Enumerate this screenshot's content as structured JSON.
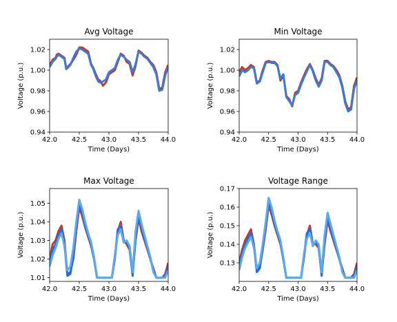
{
  "chart_data": [
    {
      "type": "line",
      "title": "Avg Voltage",
      "xlabel": "Time (Days)",
      "ylabel": "Voltage (p.u.)",
      "xlim": [
        42.0,
        44.0
      ],
      "ylim": [
        0.94,
        1.03
      ],
      "xticks": [
        42.0,
        42.5,
        43.0,
        43.5,
        44.0
      ],
      "xtick_labels": [
        "42.0",
        "42.5",
        "43.0",
        "43.5",
        "44.0"
      ],
      "yticks": [
        0.94,
        0.96,
        0.98,
        1.0,
        1.02
      ],
      "ytick_labels": [
        "0.94",
        "0.96",
        "0.98",
        "1.00",
        "1.02"
      ],
      "series": [
        {
          "color": "#c0392b",
          "x": [
            42.0,
            42.05,
            42.1,
            42.12,
            42.15,
            42.2,
            42.25,
            42.28,
            42.3,
            42.35,
            42.4,
            42.45,
            42.5,
            42.55,
            42.6,
            42.65,
            42.7,
            42.73,
            42.78,
            42.82,
            42.85,
            42.9,
            42.95,
            43.0,
            43.05,
            43.1,
            43.15,
            43.2,
            43.25,
            43.3,
            43.35,
            43.4,
            43.45,
            43.5,
            43.55,
            43.6,
            43.65,
            43.7,
            43.75,
            43.8,
            43.85,
            43.9,
            43.95,
            44.0
          ],
          "y": [
            1.005,
            1.01,
            1.012,
            1.015,
            1.016,
            1.014,
            1.012,
            1.002,
            1.003,
            1.006,
            1.01,
            1.015,
            1.022,
            1.022,
            1.02,
            1.018,
            1.006,
            1.003,
            0.996,
            0.991,
            0.99,
            0.985,
            0.988,
            0.996,
            0.998,
            1.0,
            1.008,
            1.016,
            1.014,
            1.008,
            1.006,
            0.995,
            1.004,
            1.019,
            1.017,
            1.014,
            1.012,
            1.008,
            1.005,
            0.998,
            0.982,
            0.983,
            0.998,
            1.005
          ]
        },
        {
          "color": "#3a7bd5",
          "x": [
            42.0,
            42.05,
            42.1,
            42.12,
            42.15,
            42.2,
            42.25,
            42.28,
            42.3,
            42.35,
            42.4,
            42.45,
            42.5,
            42.55,
            42.6,
            42.65,
            42.7,
            42.73,
            42.78,
            42.82,
            42.85,
            42.9,
            42.95,
            43.0,
            43.05,
            43.1,
            43.15,
            43.2,
            43.25,
            43.3,
            43.35,
            43.4,
            43.45,
            43.5,
            43.55,
            43.6,
            43.65,
            43.7,
            43.75,
            43.8,
            43.85,
            43.9,
            43.95,
            44.0
          ],
          "y": [
            1.003,
            1.008,
            1.011,
            1.013,
            1.015,
            1.013,
            1.011,
            1.001,
            1.002,
            1.005,
            1.012,
            1.018,
            1.021,
            1.02,
            1.018,
            1.016,
            1.005,
            1.002,
            0.994,
            0.989,
            0.988,
            0.989,
            0.991,
            0.998,
            1.0,
            1.002,
            1.01,
            1.015,
            1.013,
            1.01,
            1.008,
            0.998,
            1.006,
            1.018,
            1.016,
            1.013,
            1.011,
            1.007,
            1.003,
            0.996,
            0.98,
            0.981,
            0.995,
            1.003
          ]
        }
      ]
    },
    {
      "type": "line",
      "title": "Min Voltage",
      "xlabel": "Time (Days)",
      "ylabel": "Voltage (p.u.)",
      "xlim": [
        42.0,
        44.0
      ],
      "ylim": [
        0.94,
        1.03
      ],
      "xticks": [
        42.0,
        42.5,
        43.0,
        43.5,
        44.0
      ],
      "xtick_labels": [
        "42.0",
        "42.5",
        "43.0",
        "43.5",
        "44.0"
      ],
      "yticks": [
        0.94,
        0.96,
        0.98,
        1.0,
        1.02
      ],
      "ytick_labels": [
        "0.94",
        "0.96",
        "0.98",
        "1.00",
        "1.02"
      ],
      "series": [
        {
          "color": "#c0392b",
          "x": [
            42.0,
            42.05,
            42.1,
            42.15,
            42.2,
            42.25,
            42.3,
            42.35,
            42.4,
            42.45,
            42.5,
            42.55,
            42.6,
            42.65,
            42.7,
            42.75,
            42.8,
            42.85,
            42.9,
            42.95,
            43.0,
            43.05,
            43.1,
            43.15,
            43.2,
            43.25,
            43.3,
            43.35,
            43.4,
            43.45,
            43.5,
            43.55,
            43.6,
            43.65,
            43.7,
            43.75,
            43.8,
            43.85,
            43.9,
            43.95,
            44.0
          ],
          "y": [
            0.998,
            1.003,
            1.0,
            1.002,
            1.005,
            1.003,
            0.988,
            0.99,
            1.0,
            1.008,
            1.009,
            1.008,
            1.008,
            1.005,
            0.99,
            0.995,
            0.975,
            0.972,
            0.965,
            0.978,
            0.98,
            0.988,
            0.995,
            1.001,
            1.006,
            1.0,
            0.992,
            0.986,
            0.992,
            1.009,
            1.009,
            1.006,
            1.004,
            1.0,
            0.995,
            0.985,
            0.97,
            0.962,
            0.964,
            0.985,
            0.993
          ]
        },
        {
          "color": "#3a7bd5",
          "x": [
            42.0,
            42.05,
            42.1,
            42.15,
            42.2,
            42.25,
            42.3,
            42.35,
            42.4,
            42.45,
            42.5,
            42.55,
            42.6,
            42.65,
            42.7,
            42.75,
            42.8,
            42.85,
            42.9,
            42.95,
            43.0,
            43.05,
            43.1,
            43.15,
            43.2,
            43.25,
            43.3,
            43.35,
            43.4,
            43.45,
            43.5,
            43.55,
            43.6,
            43.65,
            43.7,
            43.75,
            43.8,
            43.85,
            43.9,
            43.95,
            44.0
          ],
          "y": [
            0.994,
            1.0,
            0.998,
            1.0,
            1.003,
            1.002,
            0.987,
            0.989,
            0.998,
            1.007,
            1.008,
            1.007,
            1.007,
            1.004,
            0.992,
            0.996,
            0.974,
            0.97,
            0.966,
            0.976,
            0.978,
            0.986,
            0.993,
            0.999,
            1.005,
            0.999,
            0.99,
            0.984,
            0.99,
            1.008,
            1.008,
            1.005,
            1.003,
            0.998,
            0.993,
            0.983,
            0.968,
            0.96,
            0.962,
            0.982,
            0.99
          ]
        }
      ]
    },
    {
      "type": "line",
      "title": "Max Voltage",
      "xlabel": "Time (Days)",
      "ylabel": "Voltage (p.u.)",
      "xlim": [
        42.0,
        44.0
      ],
      "ylim": [
        1.008,
        1.058
      ],
      "xticks": [
        42.0,
        42.5,
        43.0,
        43.5,
        44.0
      ],
      "xtick_labels": [
        "42.0",
        "42.5",
        "43.0",
        "43.5",
        "44.0"
      ],
      "yticks": [
        1.01,
        1.02,
        1.03,
        1.04,
        1.05
      ],
      "ytick_labels": [
        "1.01",
        "1.02",
        "1.03",
        "1.04",
        "1.05"
      ],
      "series": [
        {
          "color": "#c0392b",
          "x": [
            42.0,
            42.05,
            42.1,
            42.15,
            42.2,
            42.25,
            42.3,
            42.35,
            42.4,
            42.45,
            42.5,
            42.55,
            42.6,
            42.65,
            42.7,
            42.75,
            42.8,
            43.05,
            43.1,
            43.15,
            43.2,
            43.25,
            43.3,
            43.35,
            43.4,
            43.45,
            43.5,
            43.55,
            43.6,
            43.65,
            43.7,
            43.75,
            43.8,
            43.9,
            43.95,
            44.0
          ],
          "y": [
            1.02,
            1.028,
            1.03,
            1.035,
            1.038,
            1.03,
            1.012,
            1.013,
            1.02,
            1.035,
            1.048,
            1.043,
            1.037,
            1.032,
            1.027,
            1.02,
            1.01,
            1.01,
            1.02,
            1.035,
            1.04,
            1.03,
            1.028,
            1.025,
            1.012,
            1.03,
            1.042,
            1.035,
            1.03,
            1.025,
            1.02,
            1.015,
            1.01,
            1.01,
            1.012,
            1.018
          ]
        },
        {
          "color": "#1f6fe0",
          "x": [
            42.0,
            42.05,
            42.1,
            42.15,
            42.2,
            42.25,
            42.3,
            42.35,
            42.4,
            42.45,
            42.5,
            42.55,
            42.6,
            42.65,
            42.7,
            42.75,
            42.8,
            43.05,
            43.1,
            43.15,
            43.2,
            43.25,
            43.3,
            43.35,
            43.4,
            43.45,
            43.5,
            43.55,
            43.6,
            43.65,
            43.7,
            43.75,
            43.8,
            43.9,
            43.95,
            44.0
          ],
          "y": [
            1.018,
            1.025,
            1.028,
            1.033,
            1.036,
            1.028,
            1.011,
            1.012,
            1.022,
            1.038,
            1.05,
            1.045,
            1.038,
            1.033,
            1.028,
            1.02,
            1.01,
            1.01,
            1.021,
            1.036,
            1.038,
            1.03,
            1.029,
            1.026,
            1.011,
            1.032,
            1.044,
            1.037,
            1.031,
            1.026,
            1.02,
            1.014,
            1.01,
            1.01,
            1.011,
            1.016
          ]
        },
        {
          "color": "#5aaaf0",
          "x": [
            42.0,
            42.05,
            42.1,
            42.15,
            42.2,
            42.25,
            42.3,
            42.35,
            42.4,
            42.45,
            42.5,
            42.55,
            42.6,
            42.65,
            42.7,
            42.75,
            42.8,
            43.05,
            43.1,
            43.15,
            43.2,
            43.25,
            43.3,
            43.35,
            43.4,
            43.45,
            43.5,
            43.55,
            43.6,
            43.65,
            43.7,
            43.75,
            43.8,
            43.9,
            43.95,
            44.0
          ],
          "y": [
            1.016,
            1.022,
            1.026,
            1.031,
            1.034,
            1.027,
            1.014,
            1.016,
            1.026,
            1.04,
            1.052,
            1.047,
            1.04,
            1.034,
            1.029,
            1.021,
            1.01,
            1.01,
            1.022,
            1.033,
            1.036,
            1.029,
            1.03,
            1.027,
            1.013,
            1.035,
            1.046,
            1.039,
            1.033,
            1.027,
            1.021,
            1.013,
            1.01,
            1.01,
            1.01,
            1.014
          ]
        }
      ]
    },
    {
      "type": "line",
      "title": "Voltage Range",
      "xlabel": "Time (Days)",
      "ylabel": "Voltage (p.u.)",
      "xlim": [
        42.0,
        44.0
      ],
      "ylim": [
        0.12,
        0.17
      ],
      "xticks": [
        42.0,
        42.5,
        43.0,
        43.5,
        44.0
      ],
      "xtick_labels": [
        "42.0",
        "42.5",
        "43.0",
        "43.5",
        "44.0"
      ],
      "yticks": [
        0.13,
        0.14,
        0.15,
        0.16,
        0.17
      ],
      "ytick_labels": [
        "0.13",
        "0.14",
        "0.15",
        "0.16",
        "0.17"
      ],
      "series": [
        {
          "color": "#c0392b",
          "x": [
            42.0,
            42.05,
            42.1,
            42.15,
            42.2,
            42.25,
            42.3,
            42.35,
            42.4,
            42.45,
            42.5,
            42.55,
            42.6,
            42.65,
            42.7,
            42.75,
            42.8,
            43.05,
            43.1,
            43.15,
            43.2,
            43.25,
            43.3,
            43.35,
            43.4,
            43.45,
            43.5,
            43.55,
            43.6,
            43.65,
            43.7,
            43.75,
            43.8,
            43.9,
            43.95,
            44.0
          ],
          "y": [
            0.13,
            0.137,
            0.142,
            0.145,
            0.148,
            0.14,
            0.126,
            0.128,
            0.137,
            0.148,
            0.161,
            0.156,
            0.15,
            0.145,
            0.14,
            0.132,
            0.122,
            0.122,
            0.133,
            0.145,
            0.15,
            0.14,
            0.14,
            0.138,
            0.124,
            0.14,
            0.153,
            0.147,
            0.142,
            0.137,
            0.132,
            0.127,
            0.122,
            0.122,
            0.124,
            0.13
          ]
        },
        {
          "color": "#1f6fe0",
          "x": [
            42.0,
            42.05,
            42.1,
            42.15,
            42.2,
            42.25,
            42.3,
            42.35,
            42.4,
            42.45,
            42.5,
            42.55,
            42.6,
            42.65,
            42.7,
            42.75,
            42.8,
            43.05,
            43.1,
            43.15,
            43.2,
            43.25,
            43.3,
            43.35,
            43.4,
            43.45,
            43.5,
            43.55,
            43.6,
            43.65,
            43.7,
            43.75,
            43.8,
            43.9,
            43.95,
            44.0
          ],
          "y": [
            0.128,
            0.135,
            0.14,
            0.143,
            0.146,
            0.139,
            0.125,
            0.127,
            0.138,
            0.15,
            0.163,
            0.158,
            0.151,
            0.146,
            0.141,
            0.132,
            0.122,
            0.122,
            0.134,
            0.146,
            0.148,
            0.14,
            0.141,
            0.139,
            0.123,
            0.142,
            0.155,
            0.149,
            0.143,
            0.138,
            0.132,
            0.126,
            0.122,
            0.122,
            0.123,
            0.128
          ]
        },
        {
          "color": "#5aaaf0",
          "x": [
            42.0,
            42.05,
            42.1,
            42.15,
            42.2,
            42.25,
            42.3,
            42.35,
            42.4,
            42.45,
            42.5,
            42.55,
            42.6,
            42.65,
            42.7,
            42.75,
            42.8,
            43.05,
            43.1,
            43.15,
            43.2,
            43.25,
            43.3,
            43.35,
            43.4,
            43.45,
            43.5,
            43.55,
            43.6,
            43.65,
            43.7,
            43.75,
            43.8,
            43.9,
            43.95,
            44.0
          ],
          "y": [
            0.126,
            0.133,
            0.138,
            0.141,
            0.144,
            0.138,
            0.127,
            0.13,
            0.14,
            0.152,
            0.165,
            0.16,
            0.153,
            0.147,
            0.142,
            0.133,
            0.122,
            0.122,
            0.135,
            0.143,
            0.146,
            0.139,
            0.142,
            0.14,
            0.125,
            0.145,
            0.157,
            0.151,
            0.145,
            0.139,
            0.133,
            0.125,
            0.122,
            0.122,
            0.122,
            0.126
          ]
        }
      ]
    }
  ]
}
